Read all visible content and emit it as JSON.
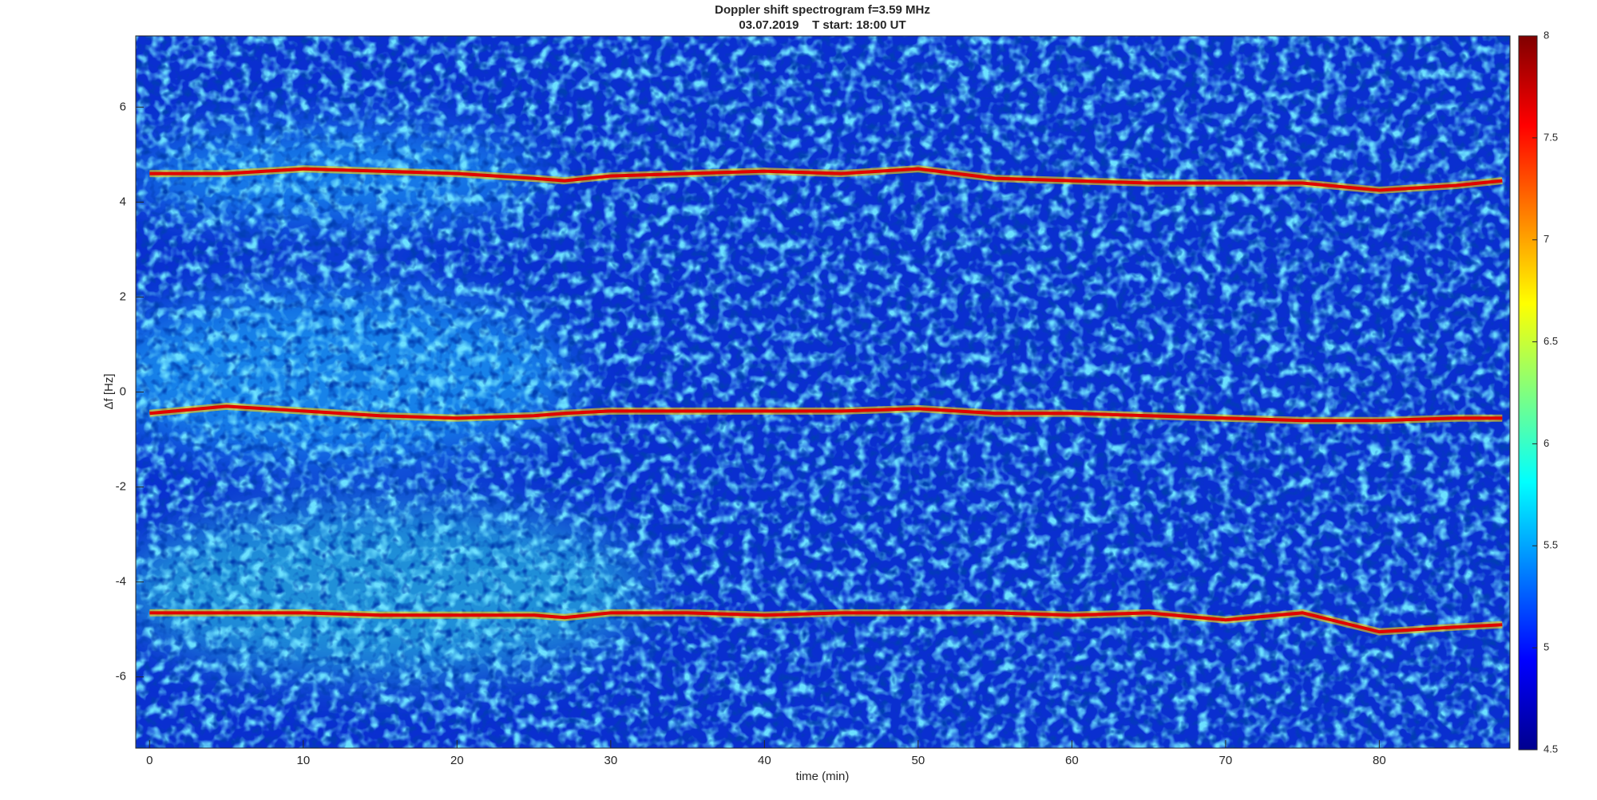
{
  "chart_data": {
    "type": "spectrogram",
    "title": "Doppler shift spectrogram f=3.59 MHz",
    "subtitle": "03.07.2019    T start: 18:00 UT",
    "x_label": "time (min)",
    "y_label": "Δf [Hz]",
    "xlim": [
      -0.9,
      88.5
    ],
    "xticks": [
      0,
      10,
      20,
      30,
      40,
      50,
      60,
      70,
      80
    ],
    "ylim": [
      -7.5,
      7.5
    ],
    "yticks": [
      -6,
      -4,
      -2,
      0,
      2,
      4,
      6
    ],
    "colormap": "jet",
    "clim": [
      4.5,
      8
    ],
    "cticks": [
      4.5,
      5,
      5.5,
      6,
      6.5,
      7,
      7.5,
      8
    ],
    "x": [
      0,
      5,
      10,
      15,
      20,
      25,
      27,
      30,
      35,
      40,
      45,
      50,
      55,
      60,
      65,
      70,
      75,
      80,
      85,
      88
    ],
    "series": [
      {
        "color": "#e00000",
        "values": [
          4.6,
          4.6,
          4.7,
          4.65,
          4.6,
          4.5,
          4.45,
          4.55,
          4.6,
          4.65,
          4.6,
          4.7,
          4.5,
          4.45,
          4.4,
          4.4,
          4.4,
          4.25,
          4.35,
          4.45
        ]
      },
      {
        "color": "#e00000",
        "values": [
          -0.45,
          -0.3,
          -0.4,
          -0.5,
          -0.55,
          -0.5,
          -0.45,
          -0.4,
          -0.4,
          -0.4,
          -0.4,
          -0.35,
          -0.45,
          -0.45,
          -0.5,
          -0.55,
          -0.6,
          -0.6,
          -0.55,
          -0.55
        ]
      },
      {
        "color": "#e00000",
        "values": [
          -4.65,
          -4.65,
          -4.65,
          -4.7,
          -4.7,
          -4.7,
          -4.75,
          -4.65,
          -4.65,
          -4.7,
          -4.65,
          -4.65,
          -4.65,
          -4.7,
          -4.65,
          -4.8,
          -4.65,
          -5.05,
          -4.95,
          -4.9
        ]
      }
    ]
  }
}
